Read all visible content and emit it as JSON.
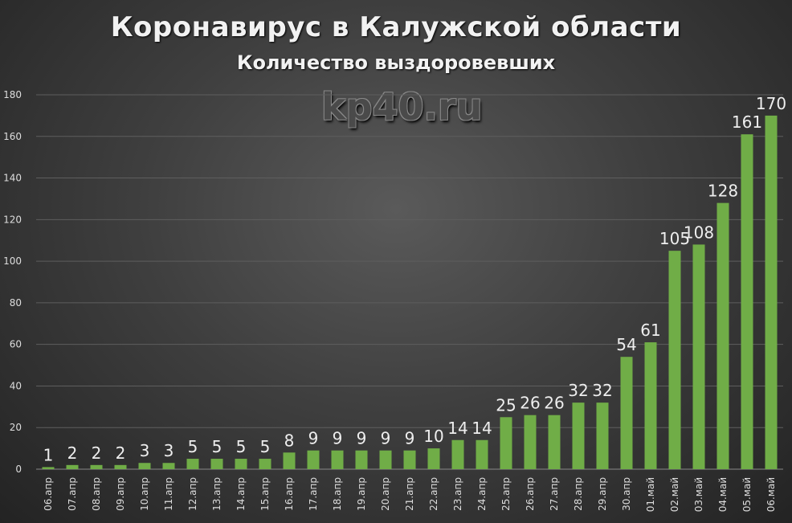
{
  "title": "Коронавирус в Калужской области",
  "subtitle": "Количество выздоровевших",
  "watermark": "kp40.ru",
  "colors": {
    "bar": "#70ad47",
    "grid": "#5e5e5e",
    "label": "#eeeeee",
    "tick": "#dddddd"
  },
  "chart_data": {
    "type": "bar",
    "title": "Коронавирус в Калужской области",
    "subtitle": "Количество выздоровевших",
    "categories": [
      "06.апр",
      "07.апр",
      "08.апр",
      "09.апр",
      "10.апр",
      "11.апр",
      "12.апр",
      "13.апр",
      "14.апр",
      "15.апр",
      "16.апр",
      "17.апр",
      "18.апр",
      "19.апр",
      "20.апр",
      "21.апр",
      "22.апр",
      "23.апр",
      "24.апр",
      "25.апр",
      "26.апр",
      "27.апр",
      "28.апр",
      "29.апр",
      "30.апр",
      "01.май",
      "02.май",
      "03.май",
      "04.май",
      "05.май",
      "06.май"
    ],
    "values": [
      1,
      2,
      2,
      2,
      3,
      3,
      5,
      5,
      5,
      5,
      8,
      9,
      9,
      9,
      9,
      9,
      10,
      14,
      14,
      25,
      26,
      26,
      32,
      32,
      54,
      61,
      105,
      108,
      128,
      161,
      170
    ],
    "ylim": [
      0,
      180
    ],
    "yticks": [
      0,
      20,
      40,
      60,
      80,
      100,
      120,
      140,
      160,
      180
    ],
    "grid": true,
    "data_labels": true
  }
}
